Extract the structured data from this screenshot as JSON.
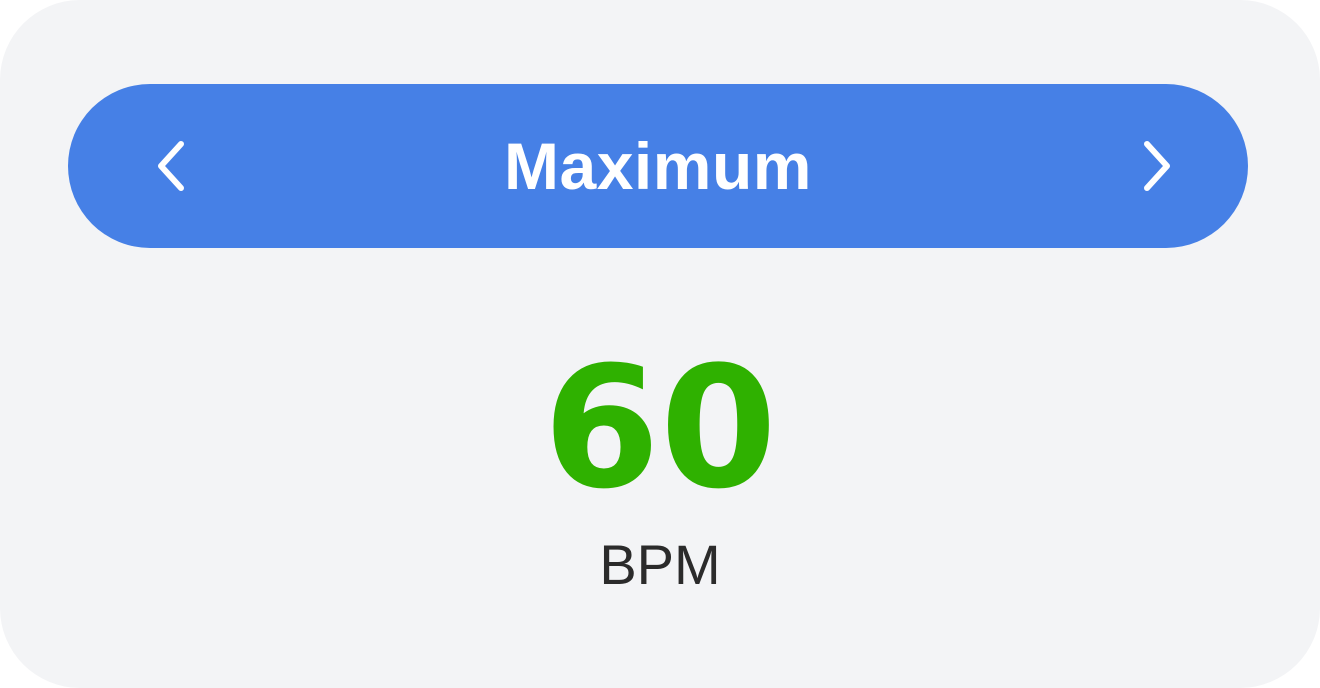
{
  "selector": {
    "label": "Maximum",
    "prev_icon": "chevron-left-icon",
    "next_icon": "chevron-right-icon",
    "background_color": "#4680e6"
  },
  "reading": {
    "value": "60",
    "unit": "BPM",
    "value_color": "#2fb100"
  }
}
